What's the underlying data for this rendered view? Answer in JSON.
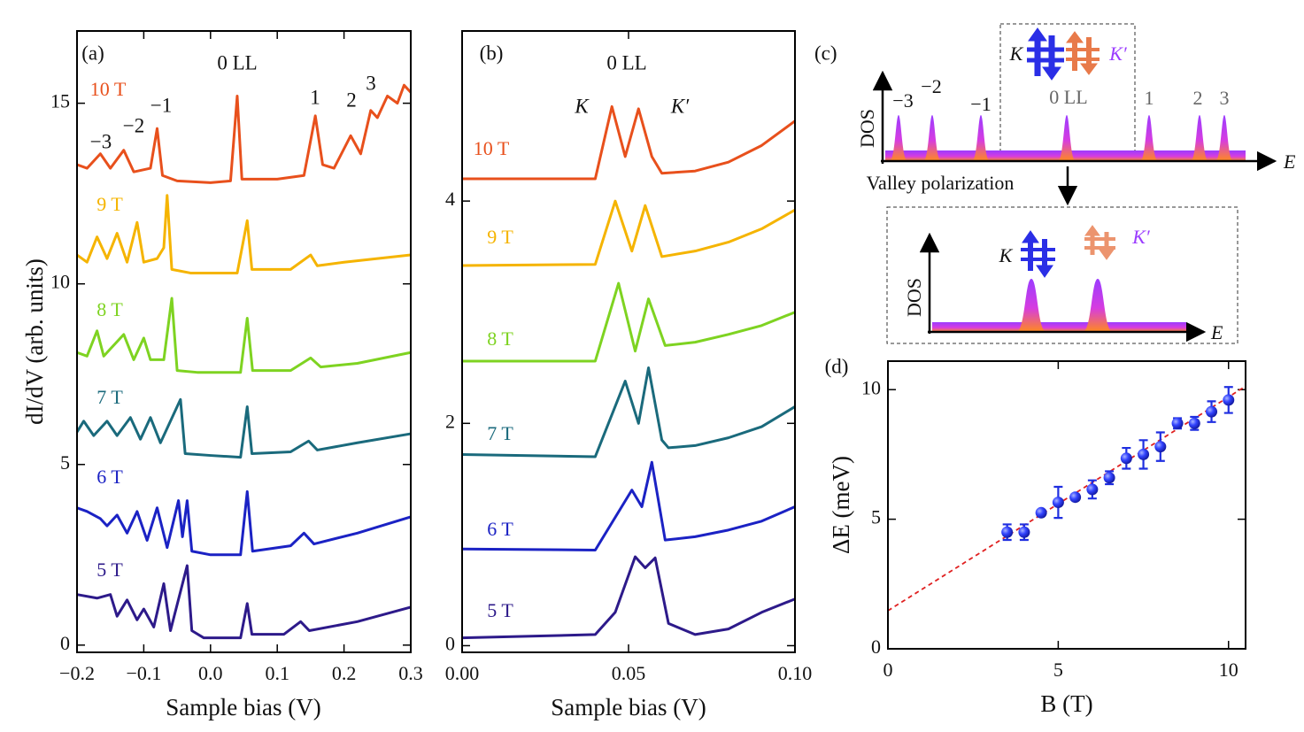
{
  "chart_data": [
    {
      "type": "line",
      "xlabel": "Sample bias (V)",
      "ylabel": "dI/dV (arb. units)",
      "xlim": [
        -0.2,
        0.3
      ],
      "ylim": [
        -0.2,
        17
      ],
      "xticks": [
        {
          "value": -0.2,
          "label": "−0.2"
        },
        {
          "value": -0.1,
          "label": "−0.1"
        },
        {
          "value": 0,
          "label": "0.0"
        },
        0.1,
        0.2,
        0.3
      ],
      "yticks": [
        0,
        5,
        10,
        15
      ],
      "annotations": [
        "(a)",
        "0 LL",
        "1",
        "2",
        "3",
        "−1",
        "−2",
        "−3"
      ],
      "series": [
        {
          "name": "10 T",
          "color": "#e8501c",
          "x": [
            -0.2,
            -0.185,
            -0.165,
            -0.15,
            -0.13,
            -0.115,
            -0.09,
            -0.08,
            -0.072,
            -0.05,
            0.0,
            0.03,
            0.04,
            0.047,
            0.1,
            0.14,
            0.157,
            0.168,
            0.185,
            0.21,
            0.225,
            0.24,
            0.25,
            0.265,
            0.28,
            0.29,
            0.3
          ],
          "values": [
            13.3,
            13.2,
            13.6,
            13.2,
            13.7,
            13.1,
            13.2,
            14.3,
            13.0,
            12.85,
            12.8,
            12.85,
            15.2,
            12.9,
            12.9,
            13.0,
            14.65,
            13.3,
            13.2,
            14.1,
            13.6,
            14.8,
            14.6,
            15.2,
            15.0,
            15.5,
            15.3
          ]
        },
        {
          "name": "9 T",
          "color": "#f5b400",
          "x": [
            -0.2,
            -0.185,
            -0.17,
            -0.155,
            -0.14,
            -0.125,
            -0.11,
            -0.1,
            -0.08,
            -0.07,
            -0.065,
            -0.058,
            -0.03,
            0.04,
            0.055,
            0.062,
            0.12,
            0.15,
            0.16,
            0.2,
            0.3
          ],
          "values": [
            10.8,
            10.6,
            11.3,
            10.7,
            11.4,
            10.6,
            11.7,
            10.6,
            10.7,
            11.0,
            12.45,
            10.4,
            10.3,
            10.3,
            11.75,
            10.4,
            10.4,
            10.8,
            10.5,
            10.6,
            10.8
          ]
        },
        {
          "name": "8 T",
          "color": "#7ed321",
          "x": [
            -0.2,
            -0.185,
            -0.17,
            -0.16,
            -0.15,
            -0.13,
            -0.115,
            -0.1,
            -0.09,
            -0.07,
            -0.058,
            -0.05,
            -0.02,
            0.045,
            0.055,
            0.063,
            0.12,
            0.15,
            0.165,
            0.22,
            0.3
          ],
          "values": [
            8.1,
            8.0,
            8.7,
            8.0,
            8.2,
            8.6,
            7.9,
            8.5,
            7.9,
            7.9,
            9.6,
            7.6,
            7.55,
            7.55,
            9.05,
            7.6,
            7.6,
            7.95,
            7.7,
            7.8,
            8.1
          ]
        },
        {
          "name": "7 T",
          "color": "#1a6a7c",
          "x": [
            -0.2,
            -0.19,
            -0.175,
            -0.155,
            -0.14,
            -0.12,
            -0.105,
            -0.09,
            -0.075,
            -0.045,
            -0.038,
            0.0,
            0.045,
            0.055,
            0.062,
            0.12,
            0.147,
            0.16,
            0.22,
            0.3
          ],
          "values": [
            5.9,
            6.2,
            5.8,
            6.2,
            5.8,
            6.3,
            5.7,
            6.3,
            5.6,
            6.8,
            5.3,
            5.25,
            5.2,
            6.6,
            5.3,
            5.35,
            5.65,
            5.4,
            5.6,
            5.85
          ]
        },
        {
          "name": "6 T",
          "color": "#1b22c4",
          "x": [
            -0.2,
            -0.185,
            -0.165,
            -0.155,
            -0.14,
            -0.125,
            -0.11,
            -0.095,
            -0.08,
            -0.065,
            -0.048,
            -0.042,
            -0.035,
            -0.028,
            0.0,
            0.045,
            0.055,
            0.063,
            0.12,
            0.14,
            0.155,
            0.22,
            0.3
          ],
          "values": [
            3.8,
            3.7,
            3.5,
            3.3,
            3.6,
            3.1,
            3.7,
            2.9,
            3.8,
            2.7,
            4.0,
            3.0,
            4.0,
            2.6,
            2.5,
            2.5,
            4.25,
            2.6,
            2.75,
            3.1,
            2.8,
            3.1,
            3.55
          ]
        },
        {
          "name": "5 T",
          "color": "#2d1a8a",
          "x": [
            -0.2,
            -0.17,
            -0.15,
            -0.14,
            -0.125,
            -0.11,
            -0.1,
            -0.085,
            -0.07,
            -0.06,
            -0.035,
            -0.028,
            -0.01,
            0.045,
            0.055,
            0.062,
            0.11,
            0.135,
            0.148,
            0.22,
            0.3
          ],
          "values": [
            1.4,
            1.3,
            1.4,
            0.8,
            1.25,
            0.7,
            1.0,
            0.5,
            1.7,
            0.4,
            2.2,
            0.4,
            0.2,
            0.2,
            1.15,
            0.3,
            0.3,
            0.65,
            0.4,
            0.65,
            1.05
          ]
        }
      ]
    },
    {
      "type": "line",
      "xlabel": "Sample bias (V)",
      "xlim": [
        0,
        0.1
      ],
      "ylim": [
        -0.06,
        5.53
      ],
      "xticks": [
        {
          "value": 0,
          "label": "0.00"
        },
        0.05,
        {
          "value": 0.1,
          "label": "0.10"
        }
      ],
      "yticks": [
        0,
        2,
        4
      ],
      "annotations": [
        "(b)",
        "0 LL",
        "K",
        "K′"
      ],
      "series": [
        {
          "name": "10 T",
          "color": "#e8501c",
          "x": [
            0,
            0.035,
            0.04,
            0.045,
            0.049,
            0.053,
            0.057,
            0.06,
            0.07,
            0.08,
            0.09,
            0.1
          ],
          "values": [
            4.2,
            4.2,
            4.2,
            4.85,
            4.4,
            4.83,
            4.4,
            4.25,
            4.27,
            4.35,
            4.5,
            4.72
          ]
        },
        {
          "name": "9 T",
          "color": "#f5b400",
          "x": [
            0,
            0.04,
            0.046,
            0.051,
            0.055,
            0.06,
            0.07,
            0.08,
            0.09,
            0.1
          ],
          "values": [
            3.42,
            3.43,
            4.0,
            3.55,
            3.96,
            3.5,
            3.55,
            3.63,
            3.75,
            3.92
          ]
        },
        {
          "name": "8 T",
          "color": "#7ed321",
          "x": [
            0,
            0.04,
            0.047,
            0.052,
            0.056,
            0.061,
            0.07,
            0.08,
            0.09,
            0.1
          ],
          "values": [
            2.56,
            2.56,
            3.26,
            2.65,
            3.12,
            2.7,
            2.73,
            2.8,
            2.88,
            3.0
          ]
        },
        {
          "name": "7 T",
          "color": "#1a6a7c",
          "x": [
            0,
            0.04,
            0.049,
            0.053,
            0.056,
            0.06,
            0.062,
            0.07,
            0.08,
            0.09,
            0.1
          ],
          "values": [
            1.72,
            1.7,
            2.38,
            2.0,
            2.5,
            1.85,
            1.78,
            1.8,
            1.87,
            1.97,
            2.15
          ]
        },
        {
          "name": "6 T",
          "color": "#1b22c4",
          "x": [
            0,
            0.04,
            0.051,
            0.054,
            0.057,
            0.061,
            0.07,
            0.08,
            0.09,
            0.1
          ],
          "values": [
            0.87,
            0.86,
            1.4,
            1.25,
            1.65,
            0.95,
            0.98,
            1.04,
            1.12,
            1.25
          ]
        },
        {
          "name": "5 T",
          "color": "#2d1a8a",
          "x": [
            0,
            0.04,
            0.046,
            0.052,
            0.055,
            0.058,
            0.062,
            0.07,
            0.08,
            0.09,
            0.1
          ],
          "values": [
            0.07,
            0.1,
            0.3,
            0.8,
            0.7,
            0.79,
            0.2,
            0.1,
            0.15,
            0.3,
            0.42
          ]
        }
      ]
    },
    {
      "type": "scatter",
      "xlabel": "B (T)",
      "ylabel": "ΔE (meV)",
      "xlim": [
        0,
        10.5
      ],
      "ylim": [
        0,
        11.1
      ],
      "xticks": [
        0,
        5,
        10
      ],
      "yticks": [
        0,
        5,
        10
      ],
      "annotations": [
        "(d)"
      ],
      "color": "#1f2ee0",
      "x": [
        3.5,
        4,
        4.5,
        5,
        5.5,
        6,
        6.5,
        7,
        7.5,
        8,
        8.5,
        9,
        9.5,
        10
      ],
      "values": [
        4.5,
        4.5,
        5.25,
        5.65,
        5.85,
        6.15,
        6.6,
        7.35,
        7.5,
        7.8,
        8.7,
        8.7,
        9.15,
        9.6
      ],
      "errors": [
        0.3,
        0.3,
        0.1,
        0.6,
        0.1,
        0.35,
        0.25,
        0.4,
        0.55,
        0.55,
        0.2,
        0.25,
        0.4,
        0.5
      ],
      "fit": {
        "color": "#e02020",
        "x": [
          0,
          10.5
        ],
        "values": [
          1.47,
          10.13
        ]
      }
    }
  ],
  "diagram": {
    "label": "(c)",
    "top": {
      "ylabel": "DOS",
      "xlabel": "E",
      "levels": [
        "−3",
        "−2",
        "−1",
        "0 LL",
        "1",
        "2",
        "3"
      ],
      "valleys": [
        "K",
        "K′"
      ]
    },
    "arrow_label": "Valley polarization",
    "bottom": {
      "ylabel": "DOS",
      "xlabel": "E",
      "valleys": [
        "K",
        "K′"
      ]
    }
  }
}
